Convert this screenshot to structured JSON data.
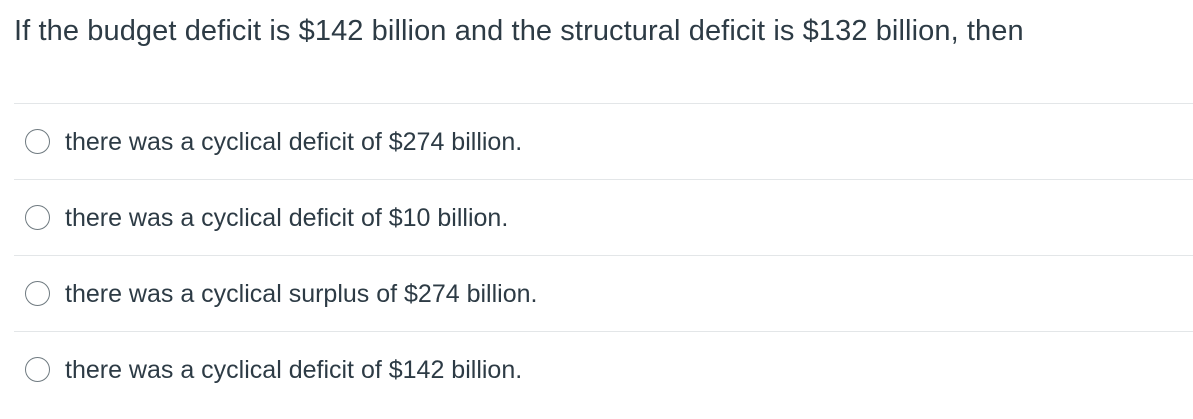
{
  "question": {
    "text": "If the budget deficit is $142 billion and the structural deficit is $132 billion, then"
  },
  "answers": [
    {
      "label": "there was a cyclical deficit of $274 billion."
    },
    {
      "label": "there was a cyclical deficit of $10 billion."
    },
    {
      "label": "there was a cyclical surplus of $274 billion."
    },
    {
      "label": "there was a cyclical deficit of $142 billion."
    }
  ],
  "colors": {
    "text": "#2d3b45",
    "divider": "#e3e6e8",
    "radio_border": "#6f7a80"
  }
}
